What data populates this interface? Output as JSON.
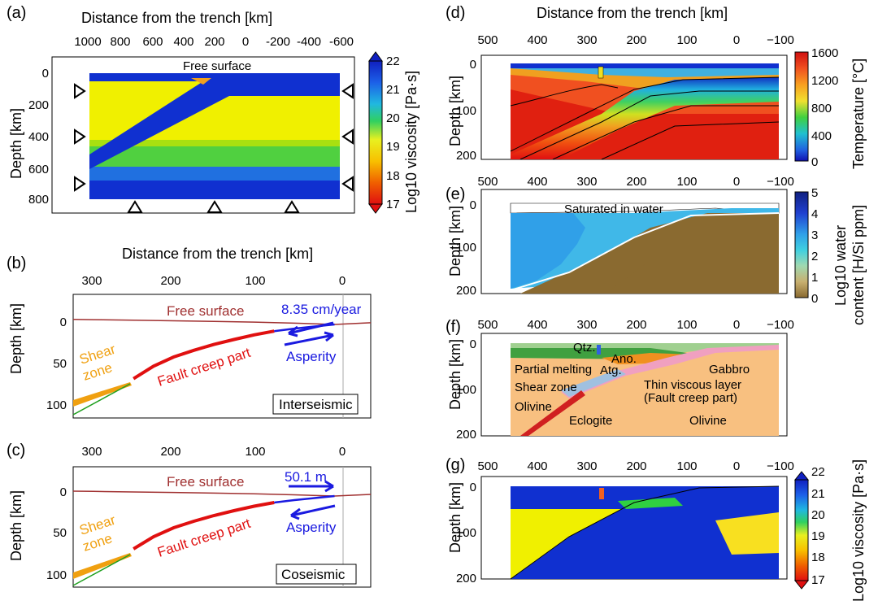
{
  "panels": {
    "a": {
      "label": "(a)",
      "xlabel": "Distance from the trench [km]",
      "ylabel": "Depth [km]",
      "xticks": [
        "1000",
        "800",
        "600",
        "400",
        "200",
        "0",
        "-200",
        "-400",
        "-600"
      ],
      "yticks": [
        "0",
        "200",
        "400",
        "600",
        "800"
      ],
      "free_surface": "Free surface",
      "colorbar": {
        "label": "Log10 viscosity [Pa·s]",
        "ticks": [
          "22",
          "21",
          "20",
          "19",
          "18",
          "17"
        ]
      }
    },
    "b": {
      "label": "(b)",
      "xlabel": "Distance from the trench [km]",
      "ylabel": "Depth [km]",
      "xticks": [
        "300",
        "200",
        "100",
        "0"
      ],
      "yticks": [
        "0",
        "50",
        "100"
      ],
      "free_surface": "Free surface",
      "velocity": "8.35 cm/year",
      "shear_zone_1": "Shear",
      "shear_zone_2": "zone",
      "fault_creep": "Fault creep part",
      "asperity": "Asperity",
      "phase": "Interseismic"
    },
    "c": {
      "label": "(c)",
      "ylabel": "Depth [km]",
      "xticks": [
        "300",
        "200",
        "100",
        "0"
      ],
      "yticks": [
        "0",
        "50",
        "100"
      ],
      "free_surface": "Free surface",
      "slip": "50.1 m",
      "shear_zone_1": "Shear",
      "shear_zone_2": "zone",
      "fault_creep": "Fault creep part",
      "asperity": "Asperity",
      "phase": "Coseismic"
    },
    "d": {
      "label": "(d)",
      "xlabel": "Distance from the trench [km]",
      "ylabel": "Depth [km]",
      "xticks": [
        "500",
        "400",
        "300",
        "200",
        "100",
        "0",
        "−100"
      ],
      "yticks": [
        "0",
        "100",
        "200"
      ],
      "colorbar": {
        "label": "Temperature [°C]",
        "ticks": [
          "1600",
          "1200",
          "800",
          "400",
          "0"
        ]
      }
    },
    "e": {
      "label": "(e)",
      "ylabel": "Depth [km]",
      "xticks": [
        "500",
        "400",
        "300",
        "200",
        "100",
        "0",
        "−100"
      ],
      "yticks": [
        "0",
        "100",
        "200"
      ],
      "saturated": "Saturated in water",
      "colorbar": {
        "label1": "Log10 water",
        "label2": "content [H/Si ppm]",
        "ticks": [
          "5",
          "4",
          "3",
          "2",
          "1",
          "0"
        ]
      }
    },
    "f": {
      "label": "(f)",
      "ylabel": "Depth [km]",
      "xticks": [
        "500",
        "400",
        "300",
        "200",
        "100",
        "0",
        "−100"
      ],
      "yticks": [
        "0",
        "100",
        "200"
      ],
      "labels": {
        "qtz": "Qtz.",
        "ano": "Ano.",
        "atg": "Atg.",
        "gabbro": "Gabbro",
        "partial_melting": "Partial melting",
        "shear_zone": "Shear zone",
        "thin_viscous_1": "Thin viscous layer",
        "thin_viscous_2": "(Fault creep part)",
        "olivine_left": "Olivine",
        "eclogite": "Eclogite",
        "olivine_right": "Olivine"
      }
    },
    "g": {
      "label": "(g)",
      "ylabel": "Depth [km]",
      "xticks": [
        "500",
        "400",
        "300",
        "200",
        "100",
        "0",
        "−100"
      ],
      "yticks": [
        "0",
        "100",
        "200"
      ],
      "colorbar": {
        "label": "Log10 viscosity [Pa·s]",
        "ticks": [
          "22",
          "21",
          "20",
          "19",
          "18",
          "17"
        ]
      }
    }
  },
  "colors": {
    "viscosity_high": "#1030d0",
    "viscosity_mid": "#f0f000",
    "fault_creep": "#e01010",
    "asperity": "#1a1ae0",
    "shear_zone": "#f0a010",
    "free_surface": "#a03030"
  },
  "chart_data": [
    {
      "type": "heatmap",
      "panel": "a",
      "title": "",
      "xlabel": "Distance from the trench [km]",
      "ylabel": "Depth [km]",
      "xlim": [
        1100,
        -700
      ],
      "ylim": [
        850,
        -100
      ],
      "colorbar_range": [
        17,
        22
      ]
    },
    {
      "type": "line",
      "panel": "b",
      "xlabel": "Distance from the trench [km]",
      "ylabel": "Depth [km]",
      "xlim": [
        325,
        -45
      ],
      "ylim": [
        118,
        -30
      ],
      "series": [
        {
          "name": "Free surface",
          "x": [
            325,
            300,
            250,
            200,
            150,
            100,
            50,
            0,
            -45
          ],
          "y": [
            0,
            0.3,
            1,
            1.6,
            2.4,
            3.2,
            4.5,
            6,
            4
          ]
        },
        {
          "name": "Fault creep part",
          "x": [
            250,
            225,
            200,
            175,
            150,
            125,
            100,
            75
          ],
          "y": [
            71,
            56,
            45,
            37,
            30,
            24,
            18.5,
            14
          ]
        },
        {
          "name": "Asperity",
          "x": [
            75,
            50,
            25,
            0
          ],
          "y": [
            14,
            11,
            8.5,
            6
          ]
        }
      ],
      "annotation": "8.35 cm/year"
    },
    {
      "type": "line",
      "panel": "c",
      "xlabel": "",
      "ylabel": "Depth [km]",
      "xlim": [
        325,
        -45
      ],
      "ylim": [
        118,
        -30
      ],
      "series": [
        {
          "name": "Free surface",
          "x": [
            325,
            300,
            250,
            200,
            150,
            100,
            50,
            0,
            -45
          ],
          "y": [
            0,
            0.3,
            1,
            1.6,
            2.4,
            3.2,
            4.5,
            6,
            4
          ]
        },
        {
          "name": "Fault creep part",
          "x": [
            250,
            225,
            200,
            175,
            150,
            125,
            100,
            75
          ],
          "y": [
            71,
            56,
            45,
            37,
            30,
            24,
            18.5,
            14
          ]
        },
        {
          "name": "Asperity",
          "x": [
            75,
            50,
            25,
            0
          ],
          "y": [
            14,
            11,
            8.5,
            6
          ]
        }
      ],
      "annotation": "50.1 m"
    },
    {
      "type": "heatmap",
      "panel": "d",
      "xlabel": "Distance from the trench [km]",
      "ylabel": "Depth [km]",
      "xlim": [
        500,
        -100
      ],
      "ylim": [
        200,
        -10
      ],
      "colorbar_range": [
        0,
        1600
      ]
    },
    {
      "type": "heatmap",
      "panel": "e",
      "ylabel": "Depth [km]",
      "xlim": [
        500,
        -100
      ],
      "ylim": [
        200,
        -10
      ],
      "colorbar_range": [
        0,
        5
      ]
    },
    {
      "type": "heatmap",
      "panel": "f",
      "ylabel": "Depth [km]",
      "xlim": [
        500,
        -100
      ],
      "ylim": [
        200,
        -10
      ]
    },
    {
      "type": "heatmap",
      "panel": "g",
      "ylabel": "Depth [km]",
      "xlim": [
        500,
        -100
      ],
      "ylim": [
        200,
        -10
      ],
      "colorbar_range": [
        17,
        22
      ]
    }
  ]
}
